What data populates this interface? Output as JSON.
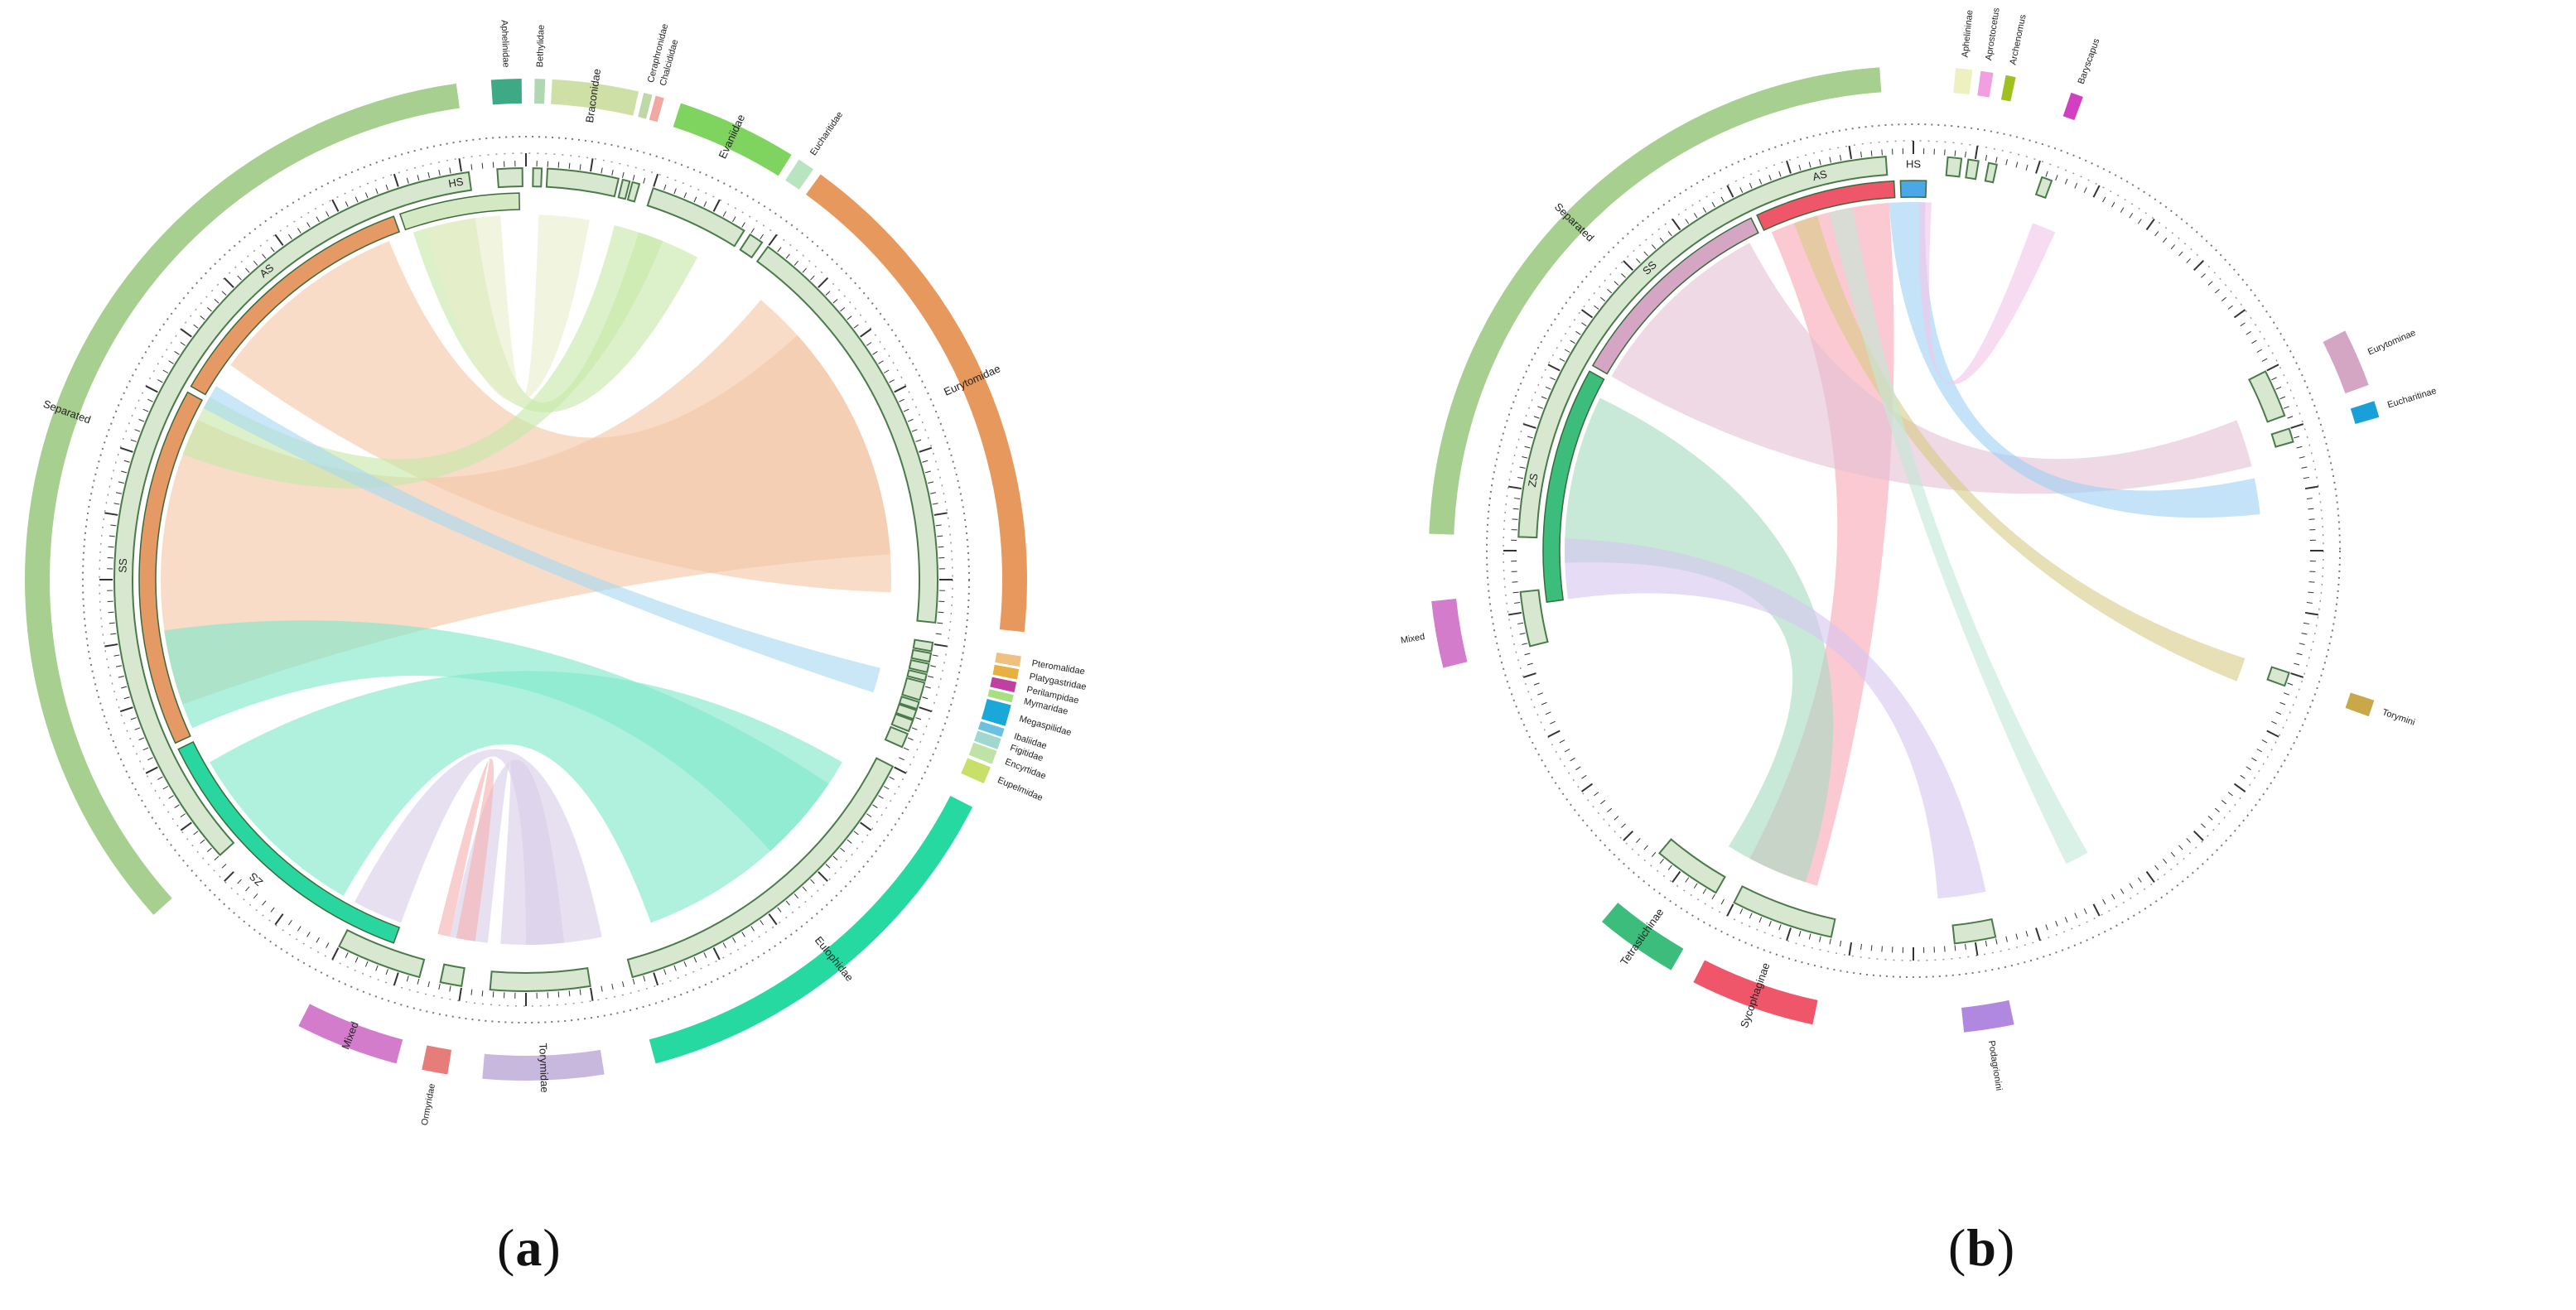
{
  "figure": {
    "panels": [
      {
        "id": "a",
        "caption_letter": "a",
        "groups": [
          {
            "label": "Separated",
            "color": "#a7cf8f",
            "start": 228,
            "end": 352
          },
          {
            "label": "Mixed",
            "color": "#d37ccc",
            "start": 195,
            "end": 207
          },
          {
            "label": "Ormyridae",
            "color": "#e77d7a",
            "start": 189,
            "end": 192
          },
          {
            "label": "Torymidae",
            "color": "#c8b8de",
            "start": 171,
            "end": 185
          },
          {
            "label": "Eulophidae",
            "color": "#25d9a0",
            "start": 117,
            "end": 165
          },
          {
            "label": "Eupelmidae",
            "color": "#c8e06a",
            "start": 112,
            "end": 114
          },
          {
            "label": "Encyrtidae",
            "color": "#bfe3a6",
            "start": 110,
            "end": 111.6
          },
          {
            "label": "Figitidae",
            "color": "#a0d8d0",
            "start": 108.5,
            "end": 109.8
          },
          {
            "label": "Ibaliidae",
            "color": "#6cc0e0",
            "start": 107.3,
            "end": 108.3
          },
          {
            "label": "Megaspilidae",
            "color": "#1aa8d8",
            "start": 104.5,
            "end": 107
          },
          {
            "label": "Mymaridae",
            "color": "#a8e080",
            "start": 103.3,
            "end": 104.2
          },
          {
            "label": "Perilampidae",
            "color": "#c040a0",
            "start": 101.8,
            "end": 103
          },
          {
            "label": "Platygastridae",
            "color": "#e8b040",
            "start": 100.3,
            "end": 101.5
          },
          {
            "label": "Pteromalidae",
            "color": "#f0c080",
            "start": 98.8,
            "end": 100
          },
          {
            "label": "Eurytomidae",
            "color": "#e7995d",
            "start": 36,
            "end": 96
          },
          {
            "label": "Eucharitidae",
            "color": "#b8e4c0",
            "start": 33,
            "end": 35
          },
          {
            "label": "Evaniidae",
            "color": "#7fd35f",
            "start": 18,
            "end": 32
          },
          {
            "label": "Chalcididae",
            "color": "#f0a8a0",
            "start": 15,
            "end": 16
          },
          {
            "label": "Ceraphronidae",
            "color": "#c0d8a8",
            "start": 13.6,
            "end": 14.6
          },
          {
            "label": "Braconidae",
            "color": "#cfe0a6",
            "start": 3,
            "end": 13
          },
          {
            "label": "Bethylidae",
            "color": "#b0d8b0",
            "start": 1,
            "end": 2.2
          },
          {
            "label": "Aphelinidae",
            "color": "#3daa85",
            "start": 356,
            "end": 359.5
          }
        ],
        "inner_sectors": [
          {
            "label": "HS",
            "color": "#d4e8c4",
            "start": 341,
            "end": 359
          },
          {
            "label": "AS",
            "color": "#e59a66",
            "start": 300,
            "end": 340
          },
          {
            "label": "SS",
            "color": "#e59a66",
            "start": 245,
            "end": 299
          },
          {
            "label": "ZS",
            "color": "#2ad6a0",
            "start": 200,
            "end": 244
          }
        ],
        "link_colors": [
          "#f3c6a6",
          "#c7e8a8",
          "#7fe8c9",
          "#d9cde8",
          "#e9edc9",
          "#f6b0b0",
          "#a8d8f0"
        ]
      },
      {
        "id": "b",
        "caption_letter": "b",
        "groups": [
          {
            "label": "Separated",
            "color": "#a7cf8f",
            "start": 272,
            "end": 356
          },
          {
            "label": "Mixed",
            "color": "#d37ccc",
            "start": 256,
            "end": 264
          },
          {
            "label": "Tetrastichinae",
            "color": "#3dbd7c",
            "start": 210,
            "end": 220
          },
          {
            "label": "Sycophaginae",
            "color": "#f0566a",
            "start": 192,
            "end": 207
          },
          {
            "label": "Podagrionini",
            "color": "#b088e0",
            "start": 168,
            "end": 174
          },
          {
            "label": "Torymini",
            "color": "#c8a848",
            "start": 108,
            "end": 110
          },
          {
            "label": "Eurytominae",
            "color": "#d4a6c4",
            "start": 63,
            "end": 70
          },
          {
            "label": "Eucharitinae",
            "color": "#1aa0d8",
            "start": 72,
            "end": 74
          },
          {
            "label": "Aphelininae",
            "color": "#eef0c0",
            "start": 5,
            "end": 7
          },
          {
            "label": "Aprostocetus",
            "color": "#f0a0e0",
            "start": 8,
            "end": 9.5
          },
          {
            "label": "Archenomus",
            "color": "#a0c020",
            "start": 11,
            "end": 12.2
          },
          {
            "label": "Baryscapus",
            "color": "#d040c0",
            "start": 19,
            "end": 20.5
          }
        ],
        "inner_sectors": [
          {
            "label": "HS",
            "color": "#4aa8e8",
            "start": 358,
            "end": 362
          },
          {
            "label": "AS",
            "color": "#f0566a",
            "start": 335,
            "end": 357
          },
          {
            "label": "SS",
            "color": "#d4a6c4",
            "start": 300,
            "end": 334
          },
          {
            "label": "ZS",
            "color": "#3dbd7c",
            "start": 262,
            "end": 299
          }
        ],
        "link_colors": [
          "#f8a8b4",
          "#a6dcc0",
          "#d7c6f0",
          "#e3c2d4",
          "#9fd0f4",
          "#d8cc88",
          "#f2c6e8",
          "#c2e8d6"
        ]
      }
    ]
  }
}
